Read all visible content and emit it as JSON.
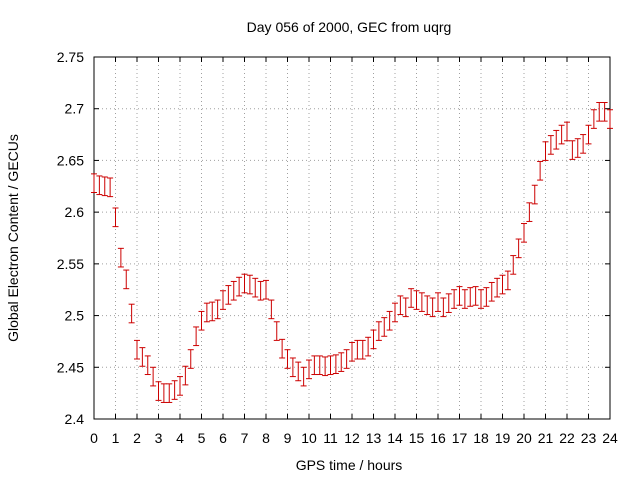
{
  "chart_data": {
    "type": "scatter",
    "title": "Day 056 of 2000, GEC from uqrg",
    "xlabel": "GPS time / hours",
    "ylabel": "Global Electron Content / GECUs",
    "xlim": [
      0,
      24
    ],
    "ylim": [
      2.4,
      2.75
    ],
    "xticks": [
      "0",
      "1",
      "2",
      "3",
      "4",
      "5",
      "6",
      "7",
      "8",
      "9",
      "10",
      "11",
      "12",
      "13",
      "14",
      "15",
      "16",
      "17",
      "18",
      "19",
      "20",
      "21",
      "22",
      "23",
      "24"
    ],
    "yticks": [
      "2.4",
      "2.45",
      "2.5",
      "2.55",
      "2.6",
      "2.65",
      "2.7",
      "2.75"
    ],
    "grid": true,
    "error_bar_half_width": 0.009,
    "series_color": "#cc0000",
    "series": [
      {
        "x": [
          0,
          0.25,
          0.5,
          0.75,
          1,
          1.25,
          1.5,
          1.75,
          2,
          2.25,
          2.5,
          2.75,
          3,
          3.25,
          3.5,
          3.75,
          4,
          4.25,
          4.5,
          4.75,
          5,
          5.25,
          5.5,
          5.75,
          6,
          6.25,
          6.5,
          6.75,
          7,
          7.25,
          7.5,
          7.75,
          8,
          8.25,
          8.5,
          8.75,
          9,
          9.25,
          9.5,
          9.75,
          10,
          10.25,
          10.5,
          10.75,
          11,
          11.25,
          11.5,
          11.75,
          12,
          12.25,
          12.5,
          12.75,
          13,
          13.25,
          13.5,
          13.75,
          14,
          14.25,
          14.5,
          14.75,
          15,
          15.25,
          15.5,
          15.75,
          16,
          16.25,
          16.5,
          16.75,
          17,
          17.25,
          17.5,
          17.75,
          18,
          18.25,
          18.5,
          18.75,
          19,
          19.25,
          19.5,
          19.75,
          20,
          20.25,
          20.5,
          20.75,
          21,
          21.25,
          21.5,
          21.75,
          22,
          22.25,
          22.5,
          22.75,
          23,
          23.25,
          23.5,
          23.75,
          24
        ],
        "y": [
          2.628,
          2.626,
          2.625,
          2.624,
          2.595,
          2.556,
          2.535,
          2.502,
          2.467,
          2.46,
          2.452,
          2.441,
          2.427,
          2.425,
          2.425,
          2.428,
          2.432,
          2.442,
          2.458,
          2.48,
          2.495,
          2.503,
          2.504,
          2.506,
          2.515,
          2.52,
          2.524,
          2.528,
          2.531,
          2.53,
          2.527,
          2.524,
          2.525,
          2.506,
          2.485,
          2.468,
          2.458,
          2.45,
          2.446,
          2.441,
          2.448,
          2.452,
          2.452,
          2.451,
          2.452,
          2.453,
          2.455,
          2.458,
          2.465,
          2.467,
          2.467,
          2.47,
          2.477,
          2.485,
          2.489,
          2.495,
          2.503,
          2.51,
          2.508,
          2.517,
          2.515,
          2.513,
          2.51,
          2.508,
          2.513,
          2.508,
          2.512,
          2.516,
          2.519,
          2.516,
          2.518,
          2.519,
          2.516,
          2.518,
          2.523,
          2.527,
          2.53,
          2.534,
          2.549,
          2.565,
          2.58,
          2.6,
          2.617,
          2.64,
          2.659,
          2.665,
          2.67,
          2.675,
          2.678,
          2.66,
          2.662,
          2.666,
          2.675,
          2.69,
          2.697,
          2.697,
          2.69
        ]
      }
    ]
  }
}
